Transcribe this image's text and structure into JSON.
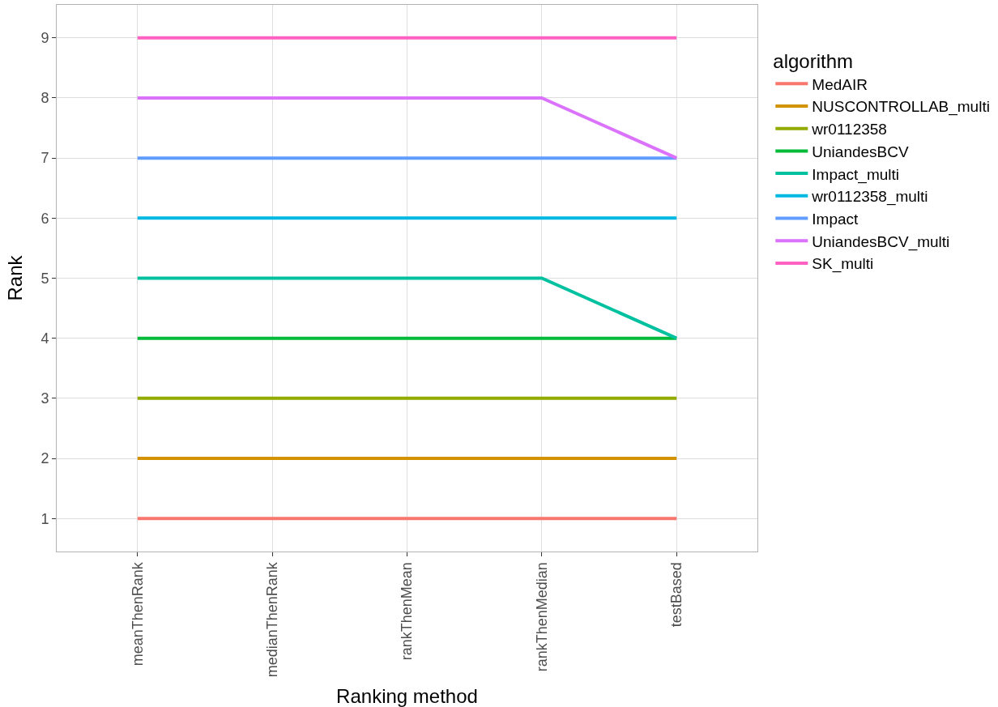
{
  "chart_data": {
    "type": "line",
    "xlabel": "Ranking method",
    "ylabel": "Rank",
    "legend_title": "algorithm",
    "categories": [
      "meanThenRank",
      "medianThenRank",
      "rankThenMean",
      "rankThenMedian",
      "testBased"
    ],
    "series": [
      {
        "name": "MedAIR",
        "color": "#f8766d",
        "values": [
          1,
          1,
          1,
          1,
          1
        ]
      },
      {
        "name": "NUSCONTROLLAB_multi",
        "color": "#d39200",
        "values": [
          2,
          2,
          2,
          2,
          2
        ]
      },
      {
        "name": "wr0112358",
        "color": "#93aa00",
        "values": [
          3,
          3,
          3,
          3,
          3
        ]
      },
      {
        "name": "UniandesBCV",
        "color": "#00ba38",
        "values": [
          4,
          4,
          4,
          4,
          4
        ]
      },
      {
        "name": "Impact_multi",
        "color": "#00c19f",
        "values": [
          5,
          5,
          5,
          5,
          4
        ]
      },
      {
        "name": "wr0112358_multi",
        "color": "#00b9e3",
        "values": [
          6,
          6,
          6,
          6,
          6
        ]
      },
      {
        "name": "Impact",
        "color": "#619cff",
        "values": [
          7,
          7,
          7,
          7,
          7
        ]
      },
      {
        "name": "UniandesBCV_multi",
        "color": "#db72fb",
        "values": [
          8,
          8,
          8,
          8,
          7
        ]
      },
      {
        "name": "SK_multi",
        "color": "#ff61c3",
        "values": [
          9,
          9,
          9,
          9,
          9
        ]
      }
    ],
    "ylim": [
      0.45,
      9.55
    ],
    "yticks": [
      1,
      2,
      3,
      4,
      5,
      6,
      7,
      8,
      9
    ],
    "grid": true,
    "legend": "right",
    "marker": "none",
    "line_style": "solid"
  }
}
